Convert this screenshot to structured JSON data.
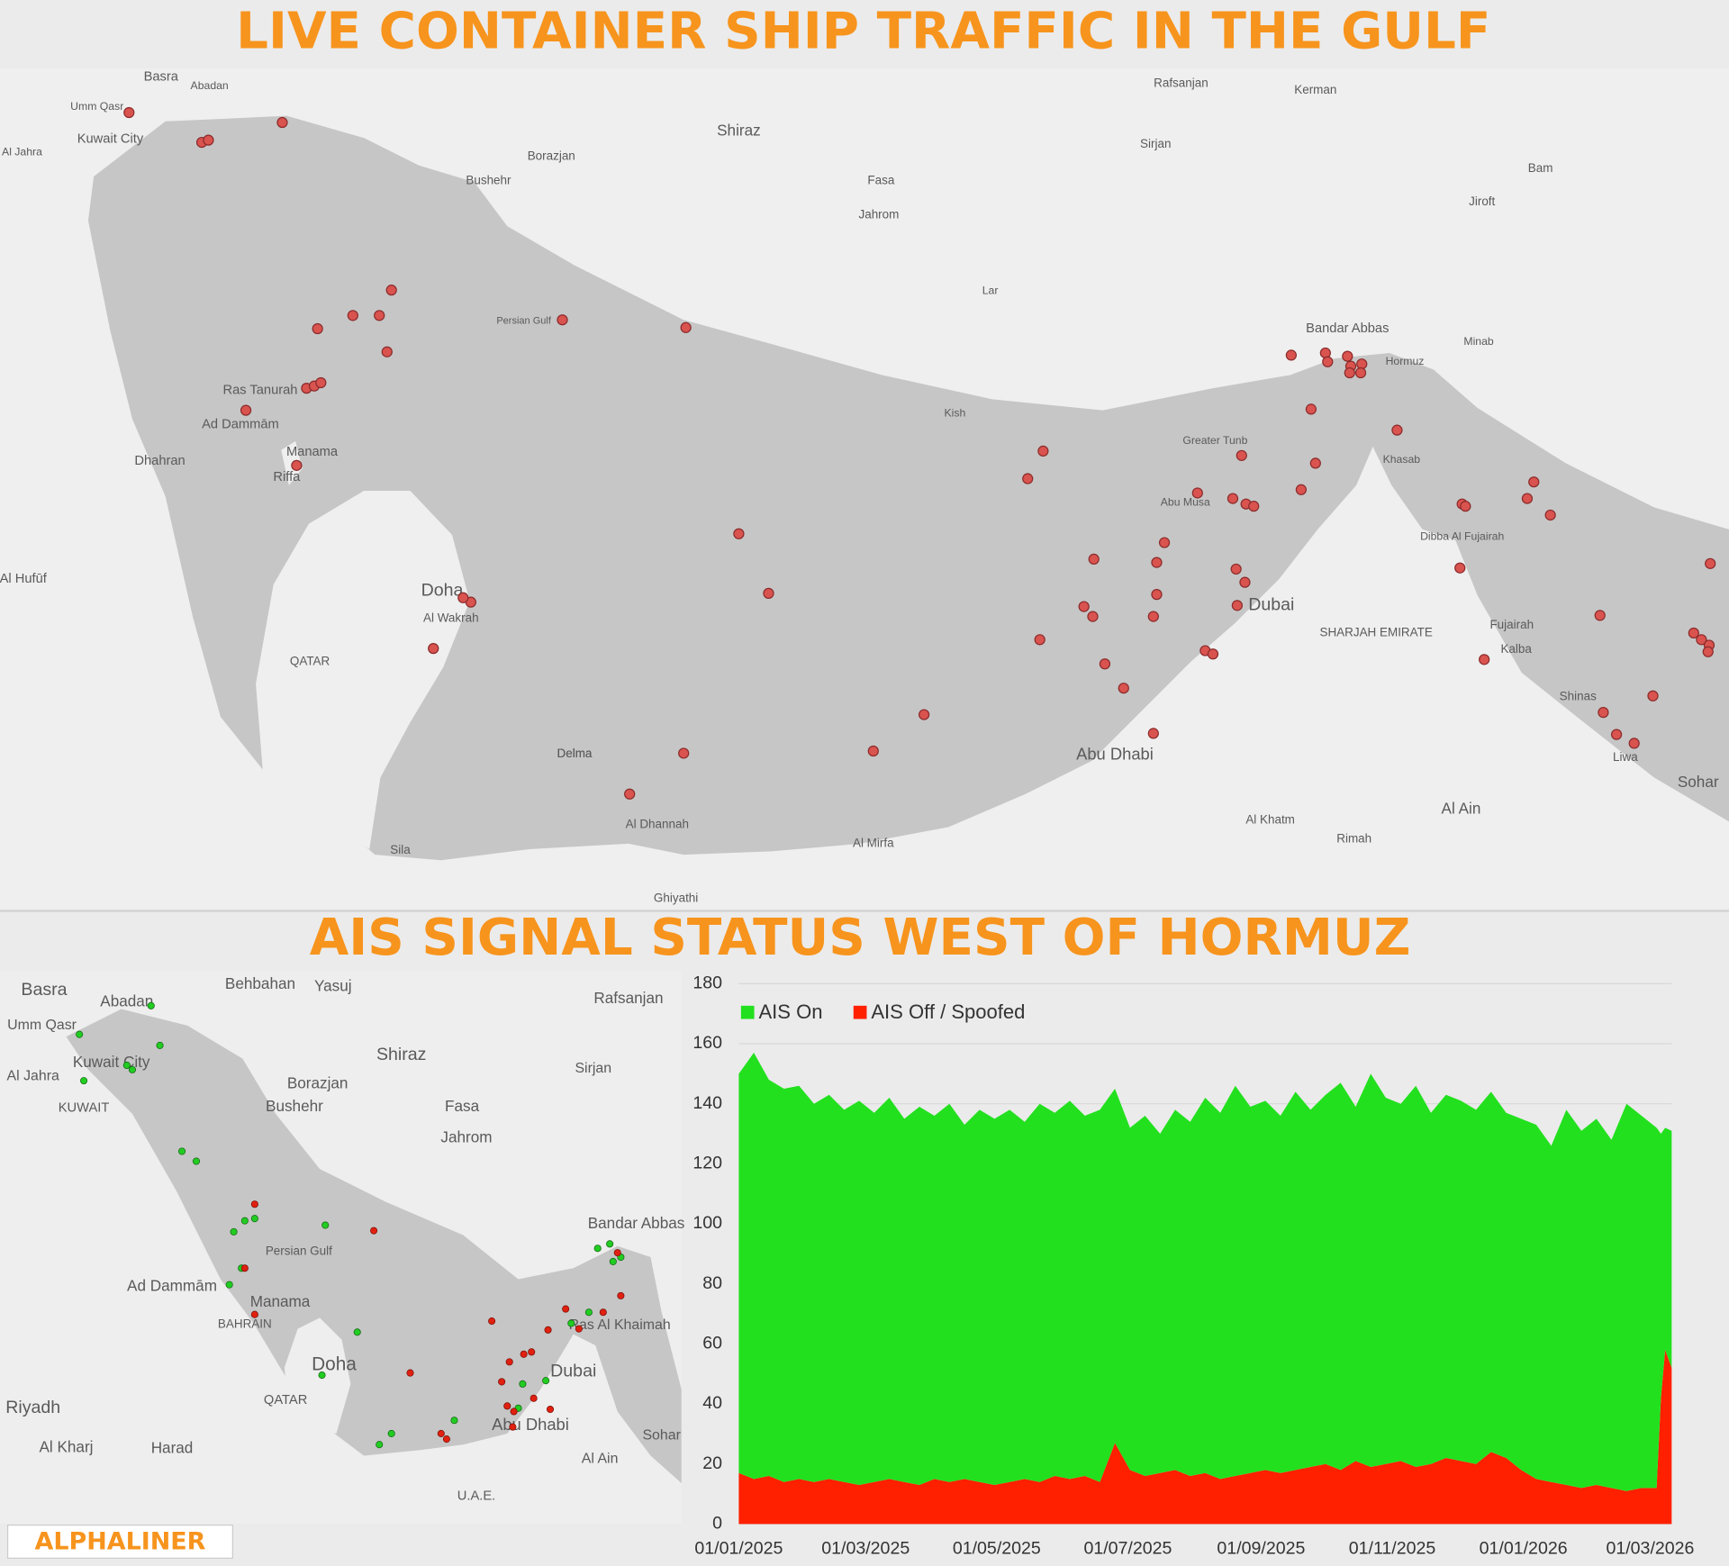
{
  "header": {
    "title": "LIVE CONTAINER SHIP TRAFFIC IN THE GULF",
    "subtitle": "AIS SIGNAL STATUS WEST OF HORMUZ"
  },
  "top_map": {
    "labels": [
      "Basra",
      "Abadan",
      "Umm Qasr",
      "Kuwait City",
      "Al Jahra",
      "Shiraz",
      "Bushehr",
      "Borazjan",
      "Kerman",
      "Sirjan",
      "Jahrom",
      "Fasa",
      "Rafsanjan",
      "Jiroft",
      "Bam",
      "Lar",
      "Minab",
      "Bandar Abbas",
      "Hormuz",
      "Persian Gulf",
      "Kish",
      "Abu Musa",
      "Greater Tunb",
      "Khasab",
      "Ras Tanurah",
      "Ad Dammām",
      "Dhahran",
      "Manama",
      "Riffa",
      "Al Hufūf",
      "Doha",
      "Al Wakrah",
      "QATAR",
      "Delma",
      "Al Dhannah",
      "Al Mirfa",
      "Abu Dhabi",
      "Dubai",
      "SHARJAH EMIRATE",
      "Al Ain",
      "Fujairah",
      "Kalba",
      "Dibba Al Fujairah",
      "Shinas",
      "Liwa",
      "Sohar",
      "Al Khatm",
      "Rimah",
      "Ghiyathi",
      "Sila",
      "Delma"
    ]
  },
  "bottom_map": {
    "labels": [
      "Basra",
      "Abadan",
      "Behbahan",
      "Yasuj",
      "Rafsanjan",
      "Umm Qasr",
      "Kuwait City",
      "Al Jahra",
      "KUWAIT",
      "Shiraz",
      "Borazjan",
      "Bushehr",
      "Sirjan",
      "Fasa",
      "Jahrom",
      "Bandar Abbas",
      "Persian Gulf",
      "Ad Dammām",
      "Manama",
      "BAHRAIN",
      "Doha",
      "QATAR",
      "Dubai",
      "Ras Al Khaimah",
      "Abu Dhabi",
      "Sohar",
      "Al Ain",
      "Riyadh",
      "Al Kharj",
      "Harad",
      "U.A.E."
    ]
  },
  "chart_data": {
    "type": "stacked-area",
    "x": [
      "01/01/2025",
      "08/01/2025",
      "15/01/2025",
      "22/01/2025",
      "29/01/2025",
      "05/02/2025",
      "12/02/2025",
      "19/02/2025",
      "26/02/2025",
      "05/03/2025",
      "12/03/2025",
      "19/03/2025",
      "26/03/2025",
      "02/04/2025",
      "09/04/2025",
      "16/04/2025",
      "23/04/2025",
      "30/04/2025",
      "07/05/2025",
      "14/05/2025",
      "21/05/2025",
      "28/05/2025",
      "04/06/2025",
      "11/06/2025",
      "18/06/2025",
      "25/06/2025",
      "02/07/2025",
      "09/07/2025",
      "16/07/2025",
      "23/07/2025",
      "30/07/2025",
      "06/08/2025",
      "13/08/2025",
      "20/08/2025",
      "27/08/2025",
      "03/09/2025",
      "10/09/2025",
      "17/09/2025",
      "24/09/2025",
      "01/10/2025",
      "08/10/2025",
      "15/10/2025",
      "22/10/2025",
      "29/10/2025",
      "05/11/2025",
      "12/11/2025",
      "19/11/2025",
      "26/11/2025",
      "03/12/2025",
      "10/12/2025",
      "17/12/2025",
      "24/12/2025",
      "31/12/2025",
      "07/01/2026",
      "14/01/2026",
      "21/01/2026",
      "28/01/2026",
      "04/02/2026",
      "11/02/2026",
      "18/02/2026",
      "25/02/2026",
      "04/03/2026",
      "06/03/2026",
      "08/03/2026",
      "11/03/2026"
    ],
    "series": [
      {
        "name": "AIS On",
        "color": "#22e01e",
        "values": [
          133,
          142,
          132,
          131,
          131,
          126,
          128,
          124,
          128,
          123,
          127,
          121,
          126,
          121,
          126,
          118,
          124,
          122,
          124,
          119,
          126,
          121,
          126,
          120,
          124,
          118,
          114,
          120,
          113,
          120,
          118,
          125,
          122,
          130,
          122,
          123,
          119,
          126,
          119,
          123,
          129,
          118,
          131,
          122,
          119,
          127,
          117,
          121,
          120,
          118,
          120,
          115,
          117,
          118,
          112,
          125,
          119,
          122,
          116,
          129,
          124,
          120,
          88,
          74,
          79
        ]
      },
      {
        "name": "AIS Off / Spoofed",
        "color": "#ff2000",
        "values": [
          17,
          15,
          16,
          14,
          15,
          14,
          15,
          14,
          13,
          14,
          15,
          14,
          13,
          15,
          14,
          15,
          14,
          13,
          14,
          15,
          14,
          16,
          15,
          16,
          14,
          27,
          18,
          16,
          17,
          18,
          16,
          17,
          15,
          16,
          17,
          18,
          17,
          18,
          19,
          20,
          18,
          21,
          19,
          20,
          21,
          19,
          20,
          22,
          21,
          20,
          24,
          22,
          18,
          15,
          14,
          13,
          12,
          13,
          12,
          11,
          12,
          12,
          42,
          58,
          52
        ]
      }
    ],
    "xlim": [
      "01/01/2025",
      "11/03/2026"
    ],
    "xticks": [
      "01/01/2025",
      "01/03/2025",
      "01/05/2025",
      "01/07/2025",
      "01/09/2025",
      "01/11/2025",
      "01/01/2026",
      "01/03/2026"
    ],
    "ylim": [
      0,
      180
    ],
    "yticks": [
      0,
      20,
      40,
      60,
      80,
      100,
      120,
      140,
      160,
      180
    ],
    "grid": true,
    "legend": "top-left"
  },
  "logo": "ALPHALINER"
}
